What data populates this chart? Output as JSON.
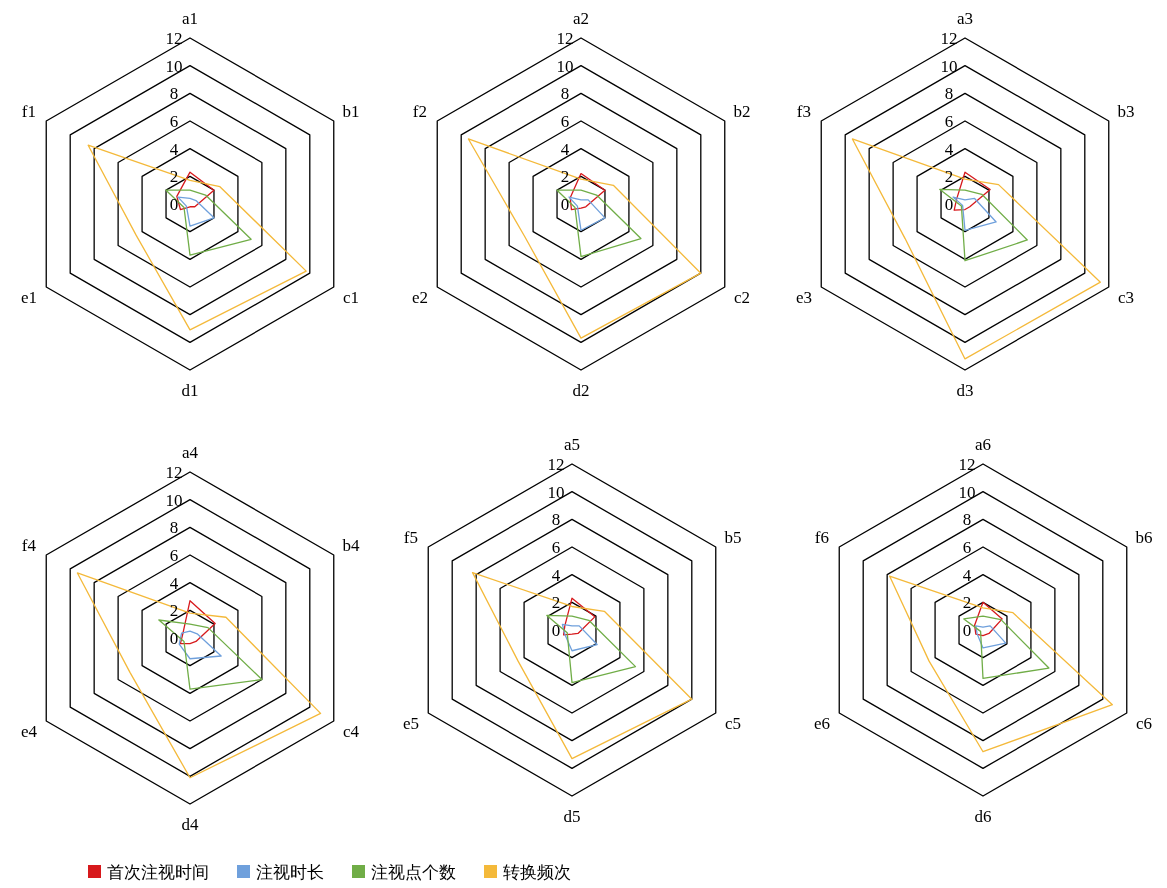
{
  "chart_data": [
    {
      "type": "radar",
      "categories": [
        "a1",
        "b1",
        "c1",
        "d1",
        "e1",
        "f1"
      ],
      "ylim": [
        0,
        12
      ],
      "yticks": [
        0,
        2,
        4,
        6,
        8,
        10,
        12
      ],
      "legend": "bottom",
      "series": [
        {
          "name": "首次注视时间",
          "color": "#d7191c",
          "values": [
            2.3,
            2.0,
            0.4,
            0.2,
            0.8,
            1.1
          ]
        },
        {
          "name": "注视时长",
          "color": "#6fa0dc",
          "values": [
            0.4,
            0.5,
            2.0,
            1.6,
            0.3,
            1.0
          ]
        },
        {
          "name": "注视点个数",
          "color": "#70ad47",
          "values": [
            1.0,
            1.3,
            5.1,
            3.7,
            0.5,
            2.0
          ]
        },
        {
          "name": "转换频次",
          "color": "#f4b93a",
          "values": [
            1.7,
            2.5,
            9.7,
            9.1,
            4.5,
            8.5
          ]
        }
      ]
    },
    {
      "type": "radar",
      "categories": [
        "a2",
        "b2",
        "c2",
        "d2",
        "e2",
        "f2"
      ],
      "ylim": [
        0,
        12
      ],
      "yticks": [
        0,
        2,
        4,
        6,
        8,
        10,
        12
      ],
      "series": [
        {
          "color": "#d7191c",
          "values": [
            2.2,
            2.0,
            0.4,
            0.3,
            0.8,
            0.9
          ]
        },
        {
          "color": "#6fa0dc",
          "values": [
            0.3,
            0.6,
            2.0,
            1.9,
            0.3,
            1.0
          ]
        },
        {
          "color": "#70ad47",
          "values": [
            1.0,
            1.3,
            5.0,
            3.8,
            0.5,
            2.0
          ]
        },
        {
          "color": "#f4b93a",
          "values": [
            1.8,
            2.7,
            10.0,
            9.7,
            4.7,
            9.4
          ]
        }
      ]
    },
    {
      "type": "radar",
      "categories": [
        "a3",
        "b3",
        "c3",
        "d3",
        "e3",
        "f3"
      ],
      "ylim": [
        0,
        12
      ],
      "yticks": [
        0,
        2,
        4,
        6,
        8,
        10,
        12
      ],
      "series": [
        {
          "color": "#d7191c",
          "values": [
            2.3,
            2.1,
            0.4,
            0.4,
            0.9,
            0.7
          ]
        },
        {
          "color": "#6fa0dc",
          "values": [
            0.3,
            0.8,
            2.6,
            1.9,
            0.2,
            1.0
          ]
        },
        {
          "color": "#70ad47",
          "values": [
            1.0,
            1.4,
            5.2,
            4.1,
            0.3,
            2.1
          ]
        },
        {
          "color": "#f4b93a",
          "values": [
            1.8,
            2.8,
            11.3,
            11.2,
            5.0,
            9.4
          ]
        }
      ]
    },
    {
      "type": "radar",
      "categories": [
        "a4",
        "b4",
        "c4",
        "d4",
        "e4",
        "f4"
      ],
      "ylim": [
        0,
        12
      ],
      "yticks": [
        0,
        2,
        4,
        6,
        8,
        10,
        12
      ],
      "series": [
        {
          "color": "#d7191c",
          "values": [
            2.7,
            2.1,
            0.5,
            0.4,
            0.8,
            0.6
          ]
        },
        {
          "color": "#6fa0dc",
          "values": [
            0.5,
            0.6,
            2.6,
            1.5,
            0.9,
            0.7
          ]
        },
        {
          "color": "#70ad47",
          "values": [
            1.0,
            1.5,
            6.0,
            3.7,
            0.5,
            2.6
          ]
        },
        {
          "color": "#f4b93a",
          "values": [
            1.8,
            3.0,
            10.9,
            10.1,
            5.0,
            9.4
          ]
        }
      ]
    },
    {
      "type": "radar",
      "categories": [
        "a5",
        "b5",
        "c5",
        "d5",
        "e5",
        "f5"
      ],
      "ylim": [
        0,
        12
      ],
      "yticks": [
        0,
        2,
        4,
        6,
        8,
        10,
        12
      ],
      "series": [
        {
          "color": "#d7191c",
          "values": [
            2.3,
            1.9,
            0.5,
            0.3,
            0.7,
            0.6
          ]
        },
        {
          "color": "#6fa0dc",
          "values": [
            0.3,
            0.6,
            2.1,
            1.5,
            0.6,
            0.8
          ]
        },
        {
          "color": "#70ad47",
          "values": [
            1.0,
            1.4,
            5.3,
            3.8,
            0.4,
            2.1
          ]
        },
        {
          "color": "#f4b93a",
          "values": [
            1.7,
            2.7,
            10.0,
            9.3,
            4.5,
            8.3
          ]
        }
      ]
    },
    {
      "type": "radar",
      "categories": [
        "a6",
        "b6",
        "c6",
        "d6",
        "e6",
        "f6"
      ],
      "ylim": [
        0,
        12
      ],
      "yticks": [
        0,
        2,
        4,
        6,
        8,
        10,
        12
      ],
      "series": [
        {
          "color": "#d7191c",
          "values": [
            2.0,
            1.6,
            0.5,
            0.4,
            0.6,
            0.7
          ]
        },
        {
          "color": "#6fa0dc",
          "values": [
            0.2,
            0.6,
            1.9,
            1.3,
            0.5,
            0.6
          ]
        },
        {
          "color": "#70ad47",
          "values": [
            1.0,
            1.5,
            5.5,
            3.5,
            0.2,
            1.6
          ]
        },
        {
          "color": "#f4b93a",
          "values": [
            1.6,
            2.5,
            10.8,
            8.8,
            4.5,
            7.8
          ]
        }
      ]
    }
  ]
}
